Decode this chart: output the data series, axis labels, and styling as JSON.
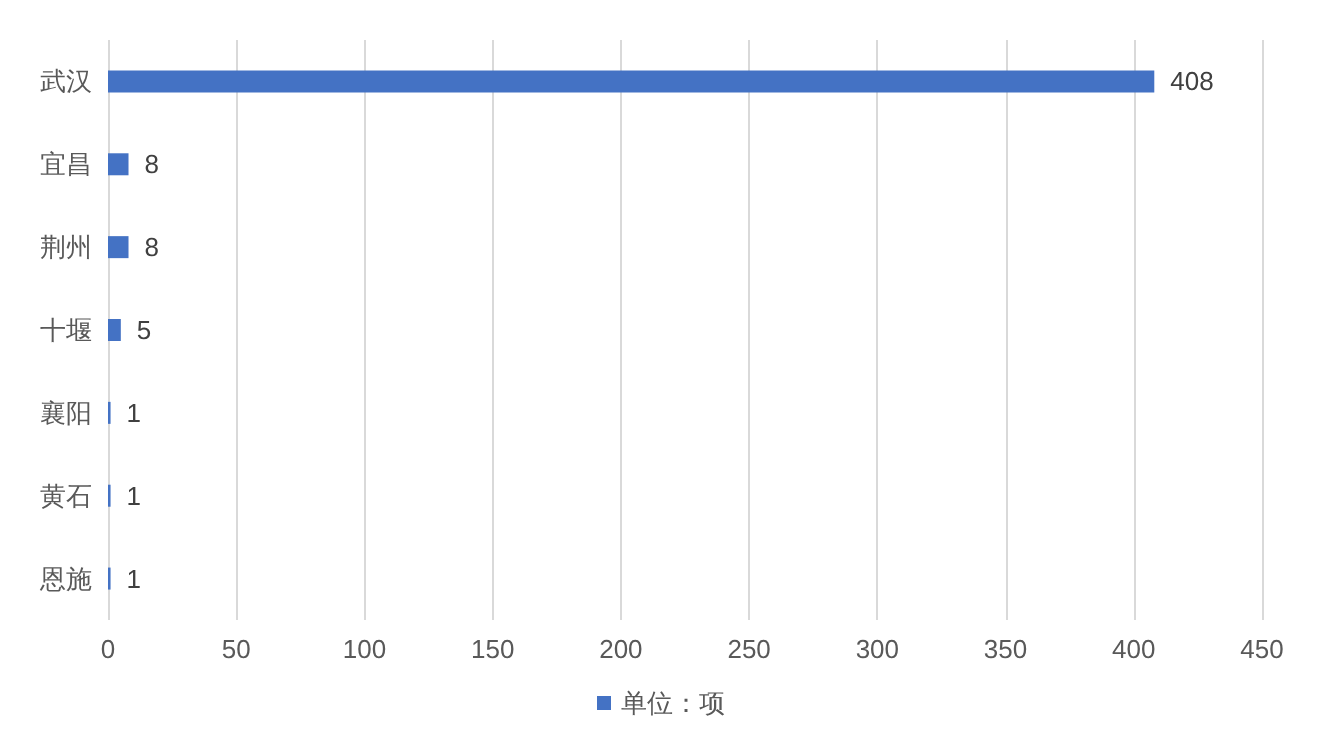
{
  "chart_data": {
    "type": "bar",
    "orientation": "horizontal",
    "categories": [
      "武汉",
      "宜昌",
      "荆州",
      "十堰",
      "襄阳",
      "黄石",
      "恩施"
    ],
    "series": [
      {
        "name": "单位：项",
        "color": "#4472c4",
        "values": [
          408,
          8,
          8,
          5,
          1,
          1,
          1
        ]
      }
    ],
    "xlim": [
      0,
      450
    ],
    "xticks": [
      0,
      50,
      100,
      150,
      200,
      250,
      300,
      350,
      400,
      450
    ],
    "grid": "x",
    "legend": "bottom",
    "data_labels": true
  }
}
